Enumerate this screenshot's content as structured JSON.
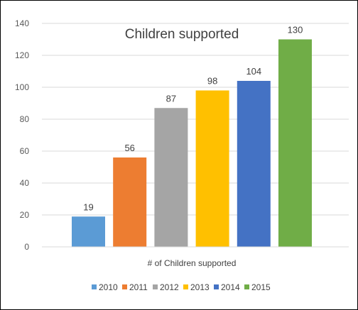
{
  "chart_data": {
    "type": "bar",
    "title": "Children supported",
    "categories": [
      "# of Children supported"
    ],
    "series": [
      {
        "name": "2010",
        "values": [
          19
        ],
        "color": "#5B9BD5"
      },
      {
        "name": "2011",
        "values": [
          56
        ],
        "color": "#ED7D31"
      },
      {
        "name": "2012",
        "values": [
          87
        ],
        "color": "#A5A5A5"
      },
      {
        "name": "2013",
        "values": [
          98
        ],
        "color": "#FFC000"
      },
      {
        "name": "2014",
        "values": [
          104
        ],
        "color": "#4472C4"
      },
      {
        "name": "2015",
        "values": [
          130
        ],
        "color": "#70AD47"
      }
    ],
    "yticks": [
      0,
      20,
      40,
      60,
      80,
      100,
      120,
      140
    ],
    "ylim": [
      0,
      140
    ],
    "xlabel": "",
    "ylabel": "",
    "grid": true,
    "legend": "bottom",
    "data_labels": true
  }
}
